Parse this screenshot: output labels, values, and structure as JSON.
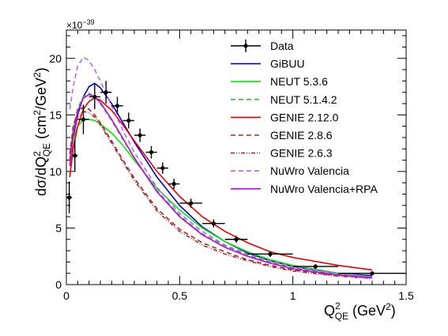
{
  "chart_data": {
    "type": "line",
    "xlabel_main": "Q",
    "xlabel_sup": "2",
    "xlabel_sub": "QE",
    "xlabel_unit_open": " (GeV",
    "xlabel_unit_sup": "2",
    "xlabel_unit_close": ")",
    "ylabel_main": "dσ/dQ",
    "ylabel_sup": "2",
    "ylabel_sub": "QE",
    "ylabel_unit_open": " (cm",
    "ylabel_unit_sup": "2",
    "ylabel_unit_mid": "/GeV",
    "ylabel_unit_sup2": "2",
    "ylabel_unit_close": ")",
    "y_multiplier_base": "×10",
    "y_multiplier_exp": "−39",
    "xlim": [
      0,
      1.5
    ],
    "ylim": [
      0,
      22.5
    ],
    "x_ticks": [
      0,
      0.5,
      1,
      1.5
    ],
    "x_tick_labels": [
      "0",
      "0.5",
      "1",
      "1.5"
    ],
    "y_ticks": [
      0,
      5,
      10,
      15,
      20
    ],
    "y_tick_labels": [
      "0",
      "5",
      "10",
      "15",
      "20"
    ],
    "grid": false,
    "legend_position": "top-right",
    "data": {
      "name": "Data",
      "color": "#000000",
      "points": [
        {
          "x": 0.0125,
          "y": 7.7,
          "xerr": 0.0125,
          "yerr": 1.4
        },
        {
          "x": 0.0375,
          "y": 11.4,
          "xerr": 0.0125,
          "yerr": 1.4
        },
        {
          "x": 0.075,
          "y": 14.6,
          "xerr": 0.025,
          "yerr": 1.3
        },
        {
          "x": 0.125,
          "y": 16.6,
          "xerr": 0.025,
          "yerr": 1.1
        },
        {
          "x": 0.175,
          "y": 17.0,
          "xerr": 0.025,
          "yerr": 1.0
        },
        {
          "x": 0.225,
          "y": 15.8,
          "xerr": 0.025,
          "yerr": 0.8
        },
        {
          "x": 0.275,
          "y": 14.5,
          "xerr": 0.025,
          "yerr": 0.7
        },
        {
          "x": 0.325,
          "y": 13.2,
          "xerr": 0.025,
          "yerr": 0.6
        },
        {
          "x": 0.375,
          "y": 11.7,
          "xerr": 0.025,
          "yerr": 0.55
        },
        {
          "x": 0.425,
          "y": 10.3,
          "xerr": 0.025,
          "yerr": 0.5
        },
        {
          "x": 0.475,
          "y": 8.9,
          "xerr": 0.025,
          "yerr": 0.45
        },
        {
          "x": 0.55,
          "y": 7.2,
          "xerr": 0.05,
          "yerr": 0.4
        },
        {
          "x": 0.65,
          "y": 5.4,
          "xerr": 0.05,
          "yerr": 0.35
        },
        {
          "x": 0.75,
          "y": 4.0,
          "xerr": 0.05,
          "yerr": 0.3
        },
        {
          "x": 0.9,
          "y": 2.7,
          "xerr": 0.1,
          "yerr": 0.25
        },
        {
          "x": 1.1,
          "y": 1.6,
          "xerr": 0.1,
          "yerr": 0.2
        },
        {
          "x": 1.35,
          "y": 1.0,
          "xerr": 0.15,
          "yerr": 0.15
        }
      ]
    },
    "series": [
      {
        "name": "GiBUU",
        "color": "#0000cc",
        "dash": "solid",
        "x": [
          0.015,
          0.03,
          0.05,
          0.075,
          0.1,
          0.125,
          0.15,
          0.2,
          0.25,
          0.3,
          0.4,
          0.5,
          0.6,
          0.7,
          0.8,
          0.9,
          1.0,
          1.2,
          1.35
        ],
        "y": [
          10.5,
          13.0,
          15.0,
          16.6,
          17.5,
          17.8,
          17.4,
          16.0,
          14.3,
          12.6,
          9.5,
          7.0,
          5.1,
          3.8,
          2.8,
          2.1,
          1.6,
          1.0,
          0.8
        ]
      },
      {
        "name": "NEUT 5.3.6",
        "color": "#00ee00",
        "dash": "solid",
        "x": [
          0.015,
          0.03,
          0.05,
          0.075,
          0.1,
          0.125,
          0.15,
          0.2,
          0.25,
          0.3,
          0.4,
          0.5,
          0.6,
          0.7,
          0.8,
          0.9,
          1.0,
          1.2,
          1.35
        ],
        "y": [
          10.5,
          12.8,
          14.0,
          14.6,
          14.6,
          14.5,
          14.2,
          13.4,
          12.3,
          11.0,
          8.5,
          6.6,
          5.0,
          3.8,
          2.9,
          2.2,
          1.7,
          1.0,
          0.7
        ]
      },
      {
        "name": "NEUT 5.1.4.2",
        "color": "#22cc22",
        "dash": "6,4",
        "x": [
          0.015,
          0.03,
          0.05,
          0.075,
          0.1,
          0.125,
          0.15,
          0.2,
          0.25,
          0.3,
          0.4,
          0.5,
          0.6,
          0.7,
          0.8,
          0.9,
          1.0,
          1.2,
          1.35
        ],
        "y": [
          11.0,
          13.8,
          15.6,
          16.6,
          16.9,
          16.6,
          16.0,
          14.5,
          12.8,
          11.2,
          8.3,
          6.1,
          4.5,
          3.4,
          2.6,
          2.0,
          1.5,
          0.9,
          0.65
        ]
      },
      {
        "name": "GENIE 2.12.0",
        "color": "#ee0000",
        "dash": "solid",
        "x": [
          0.015,
          0.03,
          0.05,
          0.075,
          0.1,
          0.125,
          0.15,
          0.2,
          0.25,
          0.3,
          0.4,
          0.5,
          0.6,
          0.7,
          0.8,
          0.9,
          1.0,
          1.2,
          1.35
        ],
        "y": [
          9.5,
          12.0,
          14.0,
          15.5,
          16.2,
          16.5,
          16.3,
          15.4,
          14.1,
          12.7,
          10.0,
          7.8,
          6.0,
          4.7,
          3.7,
          2.9,
          2.4,
          1.7,
          1.3
        ]
      },
      {
        "name": "GENIE 2.8.6",
        "color": "#a52a2a",
        "dash": "6,4",
        "x": [
          0.015,
          0.03,
          0.05,
          0.075,
          0.1,
          0.125,
          0.15,
          0.2,
          0.25,
          0.3,
          0.4,
          0.5,
          0.6,
          0.7,
          0.8,
          0.9,
          1.0,
          1.2,
          1.35
        ],
        "y": [
          11.5,
          14.0,
          15.2,
          15.7,
          15.5,
          15.0,
          14.3,
          12.7,
          11.0,
          9.4,
          6.7,
          4.9,
          3.7,
          2.9,
          2.2,
          1.7,
          1.3,
          0.8,
          0.6
        ]
      },
      {
        "name": "GENIE 2.6.3",
        "color": "#a52a2a",
        "dash": "5,2,1,2,1,2",
        "x": [
          0.015,
          0.03,
          0.05,
          0.075,
          0.1,
          0.125,
          0.15,
          0.2,
          0.25,
          0.3,
          0.4,
          0.5,
          0.6,
          0.7,
          0.8,
          0.9,
          1.0,
          1.2,
          1.35
        ],
        "y": [
          11.0,
          13.5,
          14.8,
          15.3,
          15.2,
          14.8,
          14.1,
          12.5,
          10.8,
          9.2,
          6.5,
          4.7,
          3.5,
          2.7,
          2.1,
          1.6,
          1.2,
          0.75,
          0.55
        ]
      },
      {
        "name": "NuWro Valencia",
        "color": "#b266ff",
        "dash": "6,4",
        "x": [
          0.015,
          0.03,
          0.05,
          0.075,
          0.1,
          0.125,
          0.15,
          0.2,
          0.25,
          0.3,
          0.4,
          0.5,
          0.6,
          0.7,
          0.8,
          0.9,
          1.0,
          1.2,
          1.35
        ],
        "y": [
          15.5,
          17.5,
          19.3,
          20.1,
          19.8,
          19.0,
          18.0,
          15.8,
          13.6,
          11.7,
          8.6,
          6.3,
          4.7,
          3.5,
          2.7,
          2.1,
          1.6,
          1.0,
          0.7
        ]
      },
      {
        "name": "NuWro Valencia+RPA",
        "color": "#cc00ee",
        "dash": "solid",
        "x": [
          0.015,
          0.03,
          0.05,
          0.075,
          0.1,
          0.125,
          0.15,
          0.2,
          0.25,
          0.3,
          0.4,
          0.5,
          0.6,
          0.7,
          0.8,
          0.9,
          1.0,
          1.2,
          1.35
        ],
        "y": [
          10.5,
          13.2,
          15.3,
          16.5,
          16.8,
          16.6,
          16.1,
          14.6,
          12.9,
          11.2,
          8.2,
          6.0,
          4.4,
          3.3,
          2.5,
          1.9,
          1.4,
          0.85,
          0.6
        ]
      }
    ]
  }
}
